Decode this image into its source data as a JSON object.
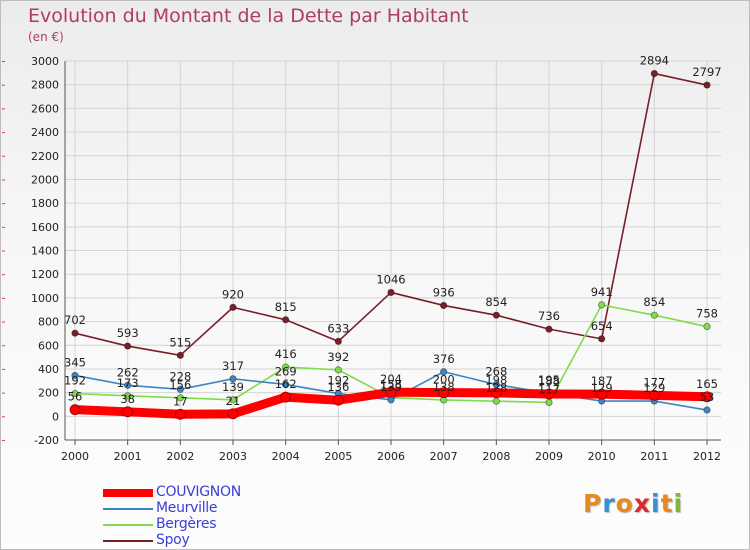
{
  "header": {
    "title": "Evolution du Montant de la Dette par Habitant",
    "subtitle": "(en €)"
  },
  "logo": {
    "text": "Proxiti",
    "letters": [
      "P",
      "r",
      "o",
      "x",
      "i",
      "t",
      "i"
    ],
    "colors": [
      "#e58a1f",
      "#3a8fd0",
      "#e58a1f",
      "#d92b2b",
      "#3a8fd0",
      "#e58a1f",
      "#7ab83a"
    ]
  },
  "chart_data": {
    "type": "line",
    "x": [
      "2000",
      "2001",
      "2002",
      "2003",
      "2004",
      "2005",
      "2006",
      "2007",
      "2008",
      "2009",
      "2010",
      "2011",
      "2012"
    ],
    "ylim": [
      -200,
      3000
    ],
    "yticks": [
      -200,
      0,
      200,
      400,
      600,
      800,
      1000,
      1200,
      1400,
      1600,
      1800,
      2000,
      2200,
      2400,
      2600,
      2800,
      3000
    ],
    "grid": true,
    "legend_position": "bottom-left",
    "series": [
      {
        "name": "Spoy",
        "color": "#7a1f2a",
        "values": [
          702,
          593,
          515,
          920,
          815,
          633,
          1046,
          936,
          854,
          736,
          654,
          2894,
          2797
        ],
        "labels": [
          "702",
          "593",
          "515",
          "920",
          "815",
          "633",
          "1046",
          "936",
          "854",
          "736",
          "654",
          "2894",
          "2797"
        ]
      },
      {
        "name": "Bergères",
        "color": "#7fdc4a",
        "values": [
          192,
          173,
          156,
          139,
          416,
          392,
          158,
          138,
          128,
          117,
          941,
          854,
          758
        ],
        "labels": [
          "192",
          "173",
          "156",
          "139",
          "416",
          "392",
          "158",
          "138",
          "128",
          "117",
          "941",
          "854",
          "758"
        ]
      },
      {
        "name": "Meurville",
        "color": "#3d86c6",
        "values": [
          345,
          262,
          228,
          317,
          269,
          192,
          139,
          376,
          268,
          195,
          129,
          129,
          53
        ],
        "labels": [
          "345",
          "262",
          "228",
          "317",
          "269",
          "192",
          "139",
          "376",
          "268",
          "195",
          "129",
          "129",
          "53"
        ]
      },
      {
        "name": "COUVIGNON",
        "color": "#ff0000",
        "values": [
          56,
          38,
          17,
          21,
          162,
          136,
          204,
          200,
          198,
          188,
          187,
          177,
          165
        ],
        "labels": [
          "56",
          "38",
          "17",
          "21",
          "162",
          "136",
          "204",
          "200",
          "198",
          "188",
          "187",
          "177",
          "165"
        ]
      }
    ]
  },
  "legend": [
    {
      "name": "COUVIGNON",
      "color": "#ff0000",
      "thickness": 8
    },
    {
      "name": "Meurville",
      "color": "#3d86c6",
      "thickness": 2
    },
    {
      "name": "Bergères",
      "color": "#7fdc4a",
      "thickness": 2
    },
    {
      "name": "Spoy",
      "color": "#7a1f2a",
      "thickness": 2
    }
  ]
}
